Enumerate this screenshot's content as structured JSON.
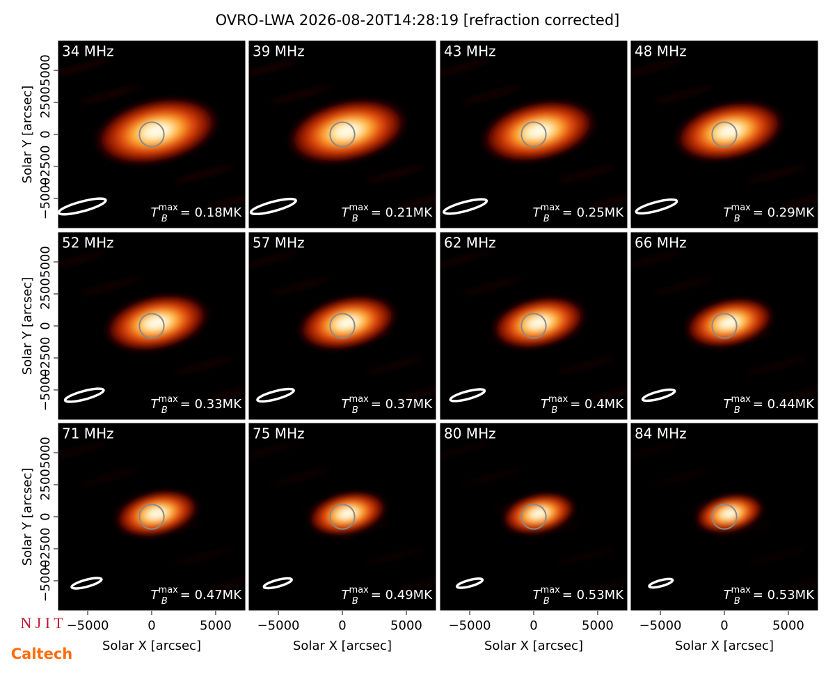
{
  "title": "OVRO-LWA 2026-08-20T14:28:19 [refraction corrected]",
  "logos": {
    "top": "N J I T",
    "bottom": "Caltech"
  },
  "axes": {
    "xlabel": "Solar X [arcsec]",
    "ylabel": "Solar Y [arcsec]",
    "xlim": [
      -7340,
      7340
    ],
    "ylim": [
      -7340,
      7340
    ],
    "xticks": [
      {
        "value": -5000,
        "label": "−5000"
      },
      0,
      5000
    ],
    "yticks": [
      {
        "value": -5000,
        "label": "−5000"
      },
      {
        "value": -2500,
        "label": "−2500"
      },
      0,
      2500,
      5000
    ]
  },
  "chart_data": [
    {
      "type": "image",
      "label": "34 MHz",
      "tb": {
        "symbol": "T",
        "sub": "B",
        "sup": "max",
        "text": "= 0.18MK"
      }
    },
    {
      "type": "image",
      "label": "39 MHz",
      "tb": {
        "symbol": "T",
        "sub": "B",
        "sup": "max",
        "text": "= 0.21MK"
      }
    },
    {
      "type": "image",
      "label": "43 MHz",
      "tb": {
        "symbol": "T",
        "sub": "B",
        "sup": "max",
        "text": "= 0.25MK"
      }
    },
    {
      "type": "image",
      "label": "48 MHz",
      "tb": {
        "symbol": "T",
        "sub": "B",
        "sup": "max",
        "text": "= 0.29MK"
      }
    },
    {
      "type": "image",
      "label": "52 MHz",
      "tb": {
        "symbol": "T",
        "sub": "B",
        "sup": "max",
        "text": "= 0.33MK"
      }
    },
    {
      "type": "image",
      "label": "57 MHz",
      "tb": {
        "symbol": "T",
        "sub": "B",
        "sup": "max",
        "text": "= 0.37MK"
      }
    },
    {
      "type": "image",
      "label": "62 MHz",
      "tb": {
        "symbol": "T",
        "sub": "B",
        "sup": "max",
        "text": "= 0.4MK"
      }
    },
    {
      "type": "image",
      "label": "66 MHz",
      "tb": {
        "symbol": "T",
        "sub": "B",
        "sup": "max",
        "text": "= 0.44MK"
      }
    },
    {
      "type": "image",
      "label": "71 MHz",
      "tb": {
        "symbol": "T",
        "sub": "B",
        "sup": "max",
        "text": "= 0.47MK"
      }
    },
    {
      "type": "image",
      "label": "75 MHz",
      "tb": {
        "symbol": "T",
        "sub": "B",
        "sup": "max",
        "text": "= 0.49MK"
      }
    },
    {
      "type": "image",
      "label": "80 MHz",
      "tb": {
        "symbol": "T",
        "sub": "B",
        "sup": "max",
        "text": "= 0.53MK"
      }
    },
    {
      "type": "image",
      "label": "84 MHz",
      "tb": {
        "symbol": "T",
        "sub": "B",
        "sup": "max",
        "text": "= 0.53MK"
      }
    }
  ]
}
